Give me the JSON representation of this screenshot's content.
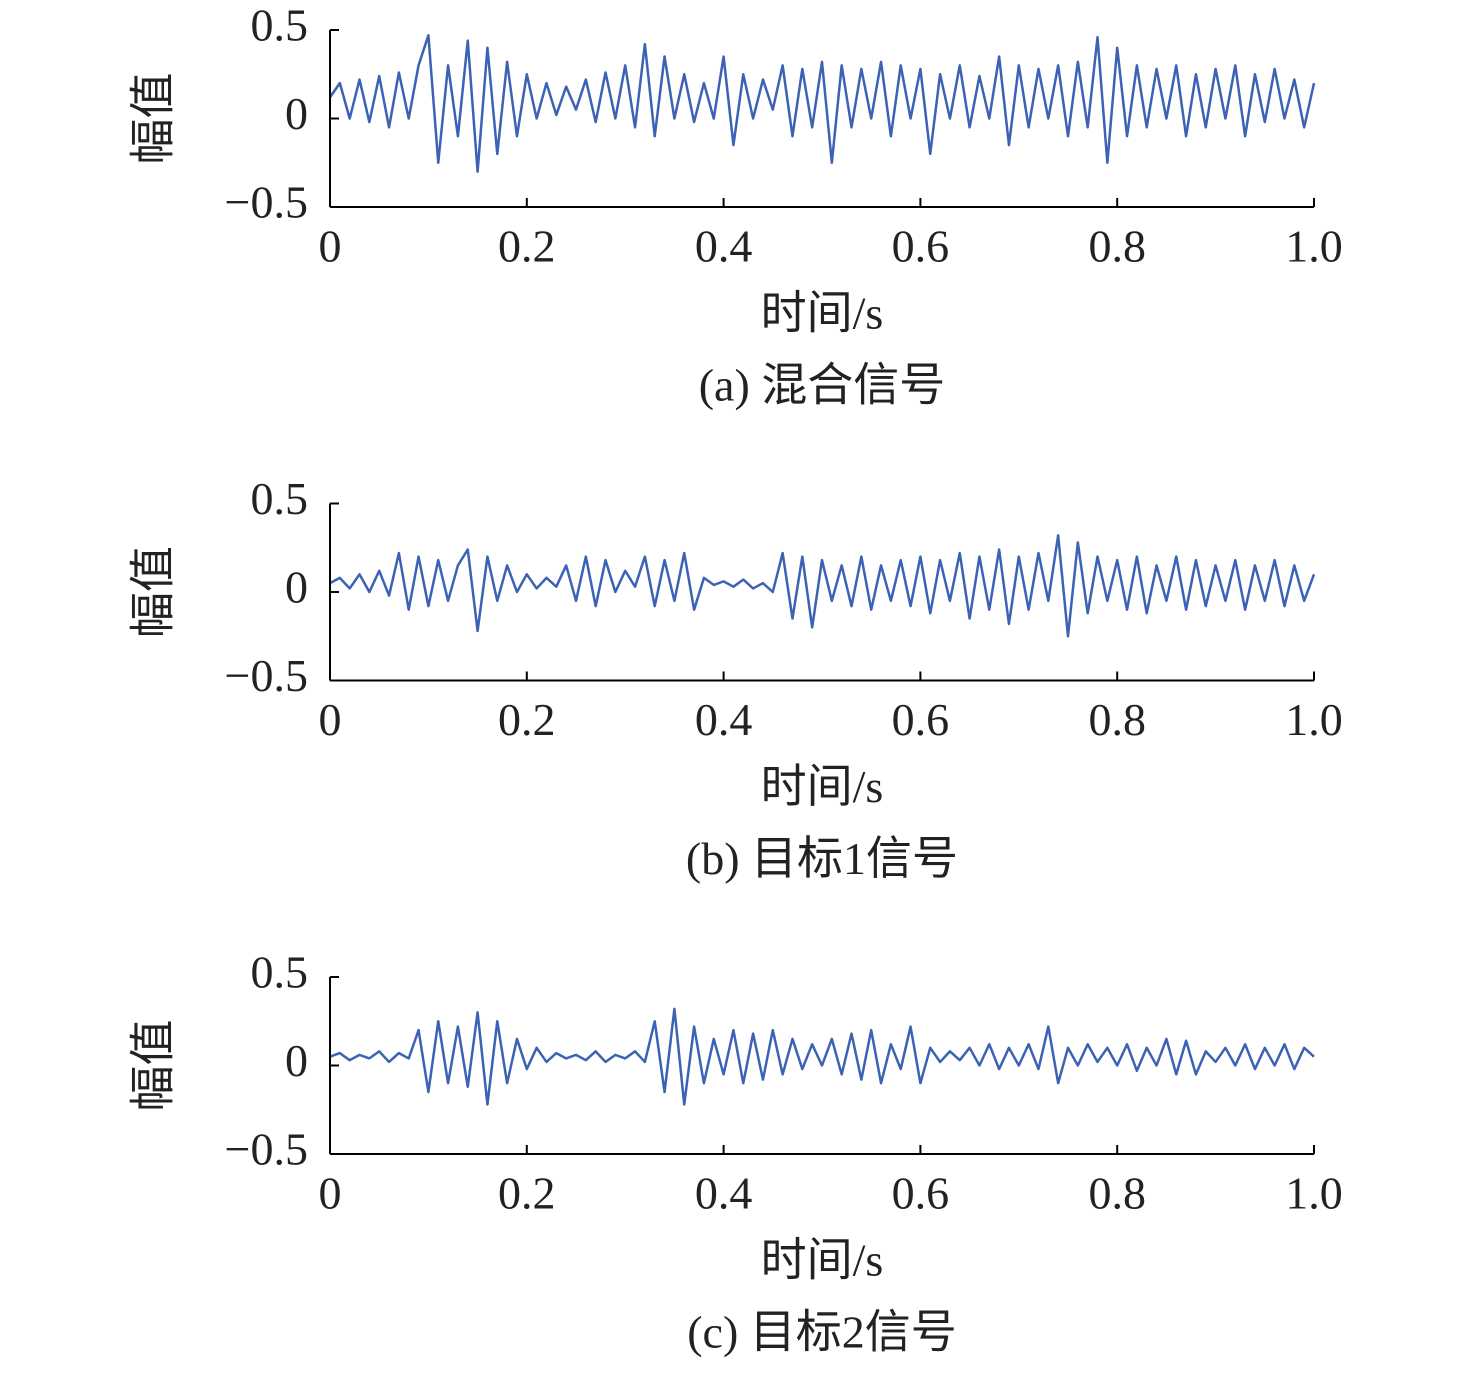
{
  "chart_data": [
    {
      "type": "line",
      "title": "(a) 混合信号",
      "xlabel": "时间/s",
      "ylabel": "幅值",
      "x": [
        0,
        0.01,
        0.02,
        0.03,
        0.04,
        0.05,
        0.06,
        0.07,
        0.08,
        0.09,
        0.1,
        0.11,
        0.12,
        0.13,
        0.14,
        0.15,
        0.16,
        0.17,
        0.18,
        0.19,
        0.2,
        0.21,
        0.22,
        0.23,
        0.24,
        0.25,
        0.26,
        0.27,
        0.28,
        0.29,
        0.3,
        0.31,
        0.32,
        0.33,
        0.34,
        0.35,
        0.36,
        0.37,
        0.38,
        0.39,
        0.4,
        0.41,
        0.42,
        0.43,
        0.44,
        0.45,
        0.46,
        0.47,
        0.48,
        0.49,
        0.5,
        0.51,
        0.52,
        0.53,
        0.54,
        0.55,
        0.56,
        0.57,
        0.58,
        0.59,
        0.6,
        0.61,
        0.62,
        0.63,
        0.64,
        0.65,
        0.66,
        0.67,
        0.68,
        0.69,
        0.7,
        0.71,
        0.72,
        0.73,
        0.74,
        0.75,
        0.76,
        0.77,
        0.78,
        0.79,
        0.8,
        0.81,
        0.82,
        0.83,
        0.84,
        0.85,
        0.86,
        0.87,
        0.88,
        0.89,
        0.9,
        0.91,
        0.92,
        0.93,
        0.94,
        0.95,
        0.96,
        0.97,
        0.98,
        0.99,
        1
      ],
      "series": [
        {
          "color": "#3b62b4",
          "values": [
            0.12,
            0.2,
            0.0,
            0.22,
            -0.02,
            0.24,
            -0.05,
            0.26,
            0.0,
            0.3,
            0.47,
            -0.25,
            0.3,
            -0.1,
            0.44,
            -0.3,
            0.4,
            -0.2,
            0.32,
            -0.1,
            0.25,
            0.0,
            0.2,
            0.02,
            0.18,
            0.05,
            0.22,
            -0.02,
            0.26,
            0.0,
            0.3,
            -0.05,
            0.42,
            -0.1,
            0.35,
            0.0,
            0.25,
            -0.02,
            0.2,
            0.0,
            0.35,
            -0.15,
            0.25,
            0.0,
            0.22,
            0.05,
            0.3,
            -0.1,
            0.28,
            -0.05,
            0.32,
            -0.25,
            0.3,
            -0.05,
            0.28,
            0.0,
            0.32,
            -0.1,
            0.3,
            0.0,
            0.28,
            -0.2,
            0.25,
            0.0,
            0.3,
            -0.05,
            0.24,
            0.0,
            0.35,
            -0.15,
            0.3,
            -0.05,
            0.28,
            0.0,
            0.3,
            -0.1,
            0.32,
            -0.05,
            0.46,
            -0.25,
            0.4,
            -0.1,
            0.3,
            -0.05,
            0.28,
            0.0,
            0.3,
            -0.1,
            0.25,
            -0.05,
            0.28,
            0.0,
            0.3,
            -0.1,
            0.25,
            -0.02,
            0.28,
            0.0,
            0.22,
            -0.05,
            0.2
          ]
        }
      ],
      "xlim": [
        0,
        1
      ],
      "ylim": [
        -0.5,
        0.5
      ],
      "xticks": [
        0,
        0.2,
        0.4,
        0.6,
        0.8,
        {
          "value": 1,
          "label": "1.0"
        }
      ],
      "yticks": [
        {
          "value": -0.5,
          "label": "−0.5"
        },
        0,
        0.5
      ]
    },
    {
      "type": "line",
      "title": "(b) 目标1信号",
      "xlabel": "时间/s",
      "ylabel": "幅值",
      "x": [
        0,
        0.01,
        0.02,
        0.03,
        0.04,
        0.05,
        0.06,
        0.07,
        0.08,
        0.09,
        0.1,
        0.11,
        0.12,
        0.13,
        0.14,
        0.15,
        0.16,
        0.17,
        0.18,
        0.19,
        0.2,
        0.21,
        0.22,
        0.23,
        0.24,
        0.25,
        0.26,
        0.27,
        0.28,
        0.29,
        0.3,
        0.31,
        0.32,
        0.33,
        0.34,
        0.35,
        0.36,
        0.37,
        0.38,
        0.39,
        0.4,
        0.41,
        0.42,
        0.43,
        0.44,
        0.45,
        0.46,
        0.47,
        0.48,
        0.49,
        0.5,
        0.51,
        0.52,
        0.53,
        0.54,
        0.55,
        0.56,
        0.57,
        0.58,
        0.59,
        0.6,
        0.61,
        0.62,
        0.63,
        0.64,
        0.65,
        0.66,
        0.67,
        0.68,
        0.69,
        0.7,
        0.71,
        0.72,
        0.73,
        0.74,
        0.75,
        0.76,
        0.77,
        0.78,
        0.79,
        0.8,
        0.81,
        0.82,
        0.83,
        0.84,
        0.85,
        0.86,
        0.87,
        0.88,
        0.89,
        0.9,
        0.91,
        0.92,
        0.93,
        0.94,
        0.95,
        0.96,
        0.97,
        0.98,
        0.99,
        1
      ],
      "series": [
        {
          "color": "#3b62b4",
          "values": [
            0.05,
            0.08,
            0.02,
            0.1,
            0.0,
            0.12,
            -0.02,
            0.22,
            -0.1,
            0.2,
            -0.08,
            0.18,
            -0.05,
            0.15,
            0.24,
            -0.22,
            0.2,
            -0.05,
            0.15,
            0.0,
            0.1,
            0.02,
            0.08,
            0.03,
            0.15,
            -0.05,
            0.2,
            -0.08,
            0.18,
            0.0,
            0.12,
            0.03,
            0.2,
            -0.08,
            0.18,
            -0.05,
            0.22,
            -0.1,
            0.08,
            0.04,
            0.06,
            0.03,
            0.07,
            0.02,
            0.05,
            0.0,
            0.22,
            -0.15,
            0.2,
            -0.2,
            0.18,
            -0.05,
            0.15,
            -0.08,
            0.2,
            -0.1,
            0.15,
            -0.05,
            0.18,
            -0.08,
            0.2,
            -0.12,
            0.18,
            -0.05,
            0.22,
            -0.15,
            0.2,
            -0.1,
            0.24,
            -0.18,
            0.2,
            -0.1,
            0.22,
            -0.05,
            0.32,
            -0.25,
            0.28,
            -0.12,
            0.2,
            -0.05,
            0.18,
            -0.1,
            0.2,
            -0.12,
            0.15,
            -0.05,
            0.2,
            -0.1,
            0.18,
            -0.08,
            0.15,
            -0.05,
            0.18,
            -0.1,
            0.15,
            -0.05,
            0.18,
            -0.08,
            0.15,
            -0.05,
            0.1
          ]
        }
      ],
      "xlim": [
        0,
        1
      ],
      "ylim": [
        -0.5,
        0.5
      ],
      "xticks": [
        0,
        0.2,
        0.4,
        0.6,
        0.8,
        {
          "value": 1,
          "label": "1.0"
        }
      ],
      "yticks": [
        {
          "value": -0.5,
          "label": "−0.5"
        },
        0,
        0.5
      ]
    },
    {
      "type": "line",
      "title": "(c) 目标2信号",
      "xlabel": "时间/s",
      "ylabel": "幅值",
      "x": [
        0,
        0.01,
        0.02,
        0.03,
        0.04,
        0.05,
        0.06,
        0.07,
        0.08,
        0.09,
        0.1,
        0.11,
        0.12,
        0.13,
        0.14,
        0.15,
        0.16,
        0.17,
        0.18,
        0.19,
        0.2,
        0.21,
        0.22,
        0.23,
        0.24,
        0.25,
        0.26,
        0.27,
        0.28,
        0.29,
        0.3,
        0.31,
        0.32,
        0.33,
        0.34,
        0.35,
        0.36,
        0.37,
        0.38,
        0.39,
        0.4,
        0.41,
        0.42,
        0.43,
        0.44,
        0.45,
        0.46,
        0.47,
        0.48,
        0.49,
        0.5,
        0.51,
        0.52,
        0.53,
        0.54,
        0.55,
        0.56,
        0.57,
        0.58,
        0.59,
        0.6,
        0.61,
        0.62,
        0.63,
        0.64,
        0.65,
        0.66,
        0.67,
        0.68,
        0.69,
        0.7,
        0.71,
        0.72,
        0.73,
        0.74,
        0.75,
        0.76,
        0.77,
        0.78,
        0.79,
        0.8,
        0.81,
        0.82,
        0.83,
        0.84,
        0.85,
        0.86,
        0.87,
        0.88,
        0.89,
        0.9,
        0.91,
        0.92,
        0.93,
        0.94,
        0.95,
        0.96,
        0.97,
        0.98,
        0.99,
        1
      ],
      "series": [
        {
          "color": "#3b62b4",
          "values": [
            0.05,
            0.07,
            0.03,
            0.06,
            0.04,
            0.08,
            0.02,
            0.07,
            0.04,
            0.2,
            -0.15,
            0.25,
            -0.1,
            0.22,
            -0.12,
            0.3,
            -0.22,
            0.25,
            -0.1,
            0.15,
            -0.02,
            0.1,
            0.02,
            0.07,
            0.04,
            0.06,
            0.03,
            0.08,
            0.02,
            0.06,
            0.04,
            0.08,
            0.02,
            0.25,
            -0.15,
            0.32,
            -0.22,
            0.22,
            -0.1,
            0.15,
            -0.05,
            0.2,
            -0.1,
            0.18,
            -0.08,
            0.2,
            -0.05,
            0.15,
            -0.02,
            0.12,
            0.0,
            0.15,
            -0.05,
            0.18,
            -0.08,
            0.2,
            -0.1,
            0.12,
            -0.02,
            0.22,
            -0.1,
            0.1,
            0.02,
            0.08,
            0.03,
            0.1,
            0.0,
            0.12,
            -0.02,
            0.1,
            0.0,
            0.12,
            -0.02,
            0.22,
            -0.1,
            0.1,
            0.0,
            0.12,
            0.02,
            0.1,
            0.0,
            0.12,
            -0.03,
            0.1,
            0.0,
            0.15,
            -0.05,
            0.14,
            -0.05,
            0.08,
            0.02,
            0.1,
            0.0,
            0.12,
            -0.02,
            0.1,
            0.0,
            0.12,
            -0.02,
            0.1,
            0.05
          ]
        }
      ],
      "xlim": [
        0,
        1
      ],
      "ylim": [
        -0.5,
        0.5
      ],
      "xticks": [
        0,
        0.2,
        0.4,
        0.6,
        0.8,
        {
          "value": 1,
          "label": "1.0"
        }
      ],
      "yticks": [
        {
          "value": -0.5,
          "label": "−0.5"
        },
        0,
        0.5
      ]
    }
  ]
}
